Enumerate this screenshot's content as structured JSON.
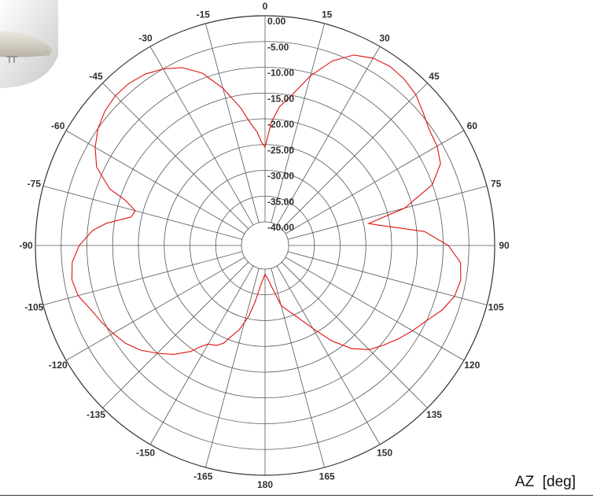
{
  "chart_data": {
    "type": "polar-line",
    "xlabel": "AZ  [deg]",
    "angle_ticks": [
      -165,
      -150,
      -135,
      -120,
      -105,
      -90,
      -75,
      -60,
      -45,
      -30,
      -15,
      0,
      15,
      30,
      45,
      60,
      75,
      90,
      105,
      120,
      135,
      150,
      165,
      180
    ],
    "radial_tick_labels": [
      "0.00",
      "-5.00",
      "-10.00",
      "-15.00",
      "-20.00",
      "-25.00",
      "-30.00",
      "-35.00",
      "-40.00"
    ],
    "r_range": [
      -40,
      0
    ],
    "grid": true,
    "series": [
      {
        "color": "#e01010",
        "points": [
          [
            0,
            -25.5
          ],
          [
            3,
            -20.5
          ],
          [
            6,
            -17.5
          ],
          [
            10,
            -15
          ],
          [
            15,
            -10.5
          ],
          [
            20,
            -6.5
          ],
          [
            25,
            -3.8
          ],
          [
            30,
            -2.6
          ],
          [
            35,
            -2.2
          ],
          [
            40,
            -2.5
          ],
          [
            45,
            -3.2
          ],
          [
            50,
            -4.5
          ],
          [
            55,
            -5.6
          ],
          [
            60,
            -6.0
          ],
          [
            65,
            -7.0
          ],
          [
            70,
            -10.0
          ],
          [
            75,
            -16.5
          ],
          [
            78,
            -24.0
          ],
          [
            80,
            -22.0
          ],
          [
            85,
            -13.5
          ],
          [
            90,
            -9.0
          ],
          [
            95,
            -6.5
          ],
          [
            100,
            -6.0
          ],
          [
            105,
            -6.5
          ],
          [
            110,
            -8.0
          ],
          [
            115,
            -10.0
          ],
          [
            120,
            -11.5
          ],
          [
            125,
            -13.0
          ],
          [
            130,
            -14.5
          ],
          [
            135,
            -16.0
          ],
          [
            140,
            -18.5
          ],
          [
            145,
            -22.0
          ],
          [
            150,
            -26.0
          ],
          [
            155,
            -29.0
          ],
          [
            160,
            -31.0
          ],
          [
            165,
            -32.5
          ],
          [
            170,
            -36.0
          ],
          [
            175,
            -38.0
          ],
          [
            180,
            -39.0
          ],
          [
            -175,
            -37.5
          ],
          [
            -170,
            -33.5
          ],
          [
            -167,
            -30.5
          ],
          [
            -163,
            -27.5
          ],
          [
            -160,
            -26.0
          ],
          [
            -157,
            -24.0
          ],
          [
            -154,
            -23.0
          ],
          [
            -150,
            -22.5
          ],
          [
            -147,
            -21.0
          ],
          [
            -145,
            -19.5
          ],
          [
            -140,
            -17.0
          ],
          [
            -135,
            -15.0
          ],
          [
            -130,
            -13.0
          ],
          [
            -125,
            -11.5
          ],
          [
            -120,
            -10.5
          ],
          [
            -115,
            -9.5
          ],
          [
            -110,
            -8.5
          ],
          [
            -105,
            -7.0
          ],
          [
            -100,
            -6.5
          ],
          [
            -95,
            -7.0
          ],
          [
            -90,
            -8.5
          ],
          [
            -85,
            -11.0
          ],
          [
            -82,
            -13.5
          ],
          [
            -78,
            -18.0
          ],
          [
            -75,
            -18.5
          ],
          [
            -72,
            -16.0
          ],
          [
            -70,
            -12.5
          ],
          [
            -65,
            -8.5
          ],
          [
            -60,
            -6.5
          ],
          [
            -55,
            -5.0
          ],
          [
            -50,
            -4.0
          ],
          [
            -45,
            -3.5
          ],
          [
            -40,
            -3.5
          ],
          [
            -35,
            -4.0
          ],
          [
            -30,
            -5.0
          ],
          [
            -25,
            -6.5
          ],
          [
            -20,
            -9.0
          ],
          [
            -15,
            -13.0
          ],
          [
            -10,
            -17.5
          ],
          [
            -7,
            -20.5
          ],
          [
            -4,
            -22.5
          ],
          [
            -2,
            -24.5
          ],
          [
            0,
            -25.5
          ]
        ]
      }
    ]
  }
}
